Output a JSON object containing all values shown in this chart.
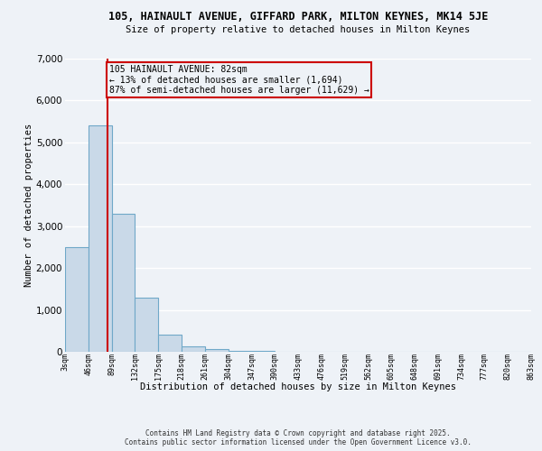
{
  "title_line1": "105, HAINAULT AVENUE, GIFFARD PARK, MILTON KEYNES, MK14 5JE",
  "title_line2": "Size of property relative to detached houses in Milton Keynes",
  "xlabel": "Distribution of detached houses by size in Milton Keynes",
  "ylabel": "Number of detached properties",
  "bin_edges": [
    3,
    46,
    89,
    132,
    175,
    218,
    261,
    304,
    347,
    390,
    433,
    476,
    519,
    562,
    605,
    648,
    691,
    734,
    777,
    820,
    863
  ],
  "bar_heights": [
    2500,
    5400,
    3300,
    1300,
    400,
    130,
    60,
    30,
    18,
    10,
    8,
    5,
    4,
    3,
    2,
    2,
    1,
    1,
    1,
    1
  ],
  "bar_color": "#c9d9e8",
  "bar_edge_color": "#6fa8c8",
  "property_size": 82,
  "vline_color": "#cc0000",
  "annotation_text": "105 HAINAULT AVENUE: 82sqm\n← 13% of detached houses are smaller (1,694)\n87% of semi-detached houses are larger (11,629) →",
  "annotation_box_color": "#cc0000",
  "ylim": [
    0,
    7000
  ],
  "yticks": [
    0,
    1000,
    2000,
    3000,
    4000,
    5000,
    6000,
    7000
  ],
  "footer_line1": "Contains HM Land Registry data © Crown copyright and database right 2025.",
  "footer_line2": "Contains public sector information licensed under the Open Government Licence v3.0.",
  "background_color": "#eef2f7",
  "grid_color": "#ffffff"
}
